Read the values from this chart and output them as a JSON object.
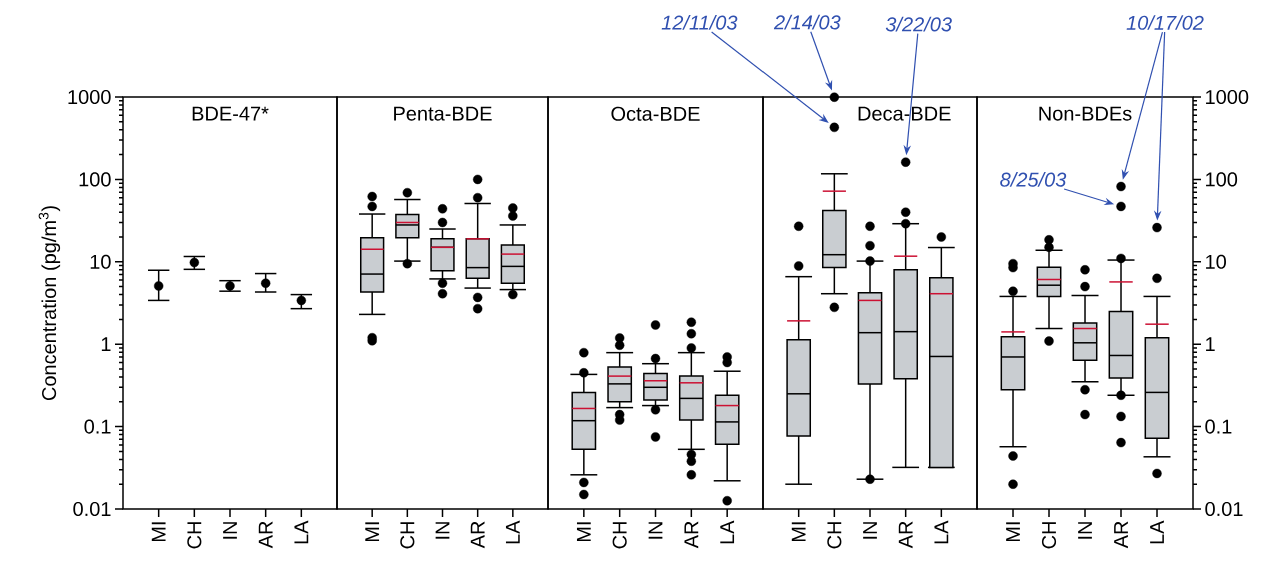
{
  "chart_data": [
    {
      "type": "scatter",
      "title": "BDE-47*",
      "ylabel": "Concentration (pg/m$^{3}$)",
      "categories": [
        "MI",
        "CH",
        "IN",
        "AR",
        "LA"
      ],
      "log": true,
      "ylim": [
        0.01,
        1000
      ],
      "yticks": [
        0.01,
        0.1,
        1,
        10,
        100,
        1000
      ],
      "marker": "circle",
      "series": [
        {
          "color": "#000000",
          "values": [
            5.1,
            9.8,
            5.1,
            5.5,
            3.4
          ],
          "errors": [
            [
              3.4,
              7.9
            ],
            [
              8.1,
              11.6
            ],
            [
              4.4,
              5.9
            ],
            [
              4.3,
              7.2
            ],
            [
              2.7,
              4.0
            ]
          ]
        }
      ]
    },
    {
      "type": "box",
      "title": "Penta-BDE",
      "categories": [
        "MI",
        "CH",
        "IN",
        "AR",
        "LA"
      ],
      "log": true,
      "ylim": [
        0.01,
        1000
      ],
      "tick_labels": "x",
      "series": [
        {
          "color": "#c9cdd1",
          "boxes": [
            {
              "low": 2.3,
              "q1": 4.3,
              "median": 7.1,
              "q3": 19.6,
              "high": 38,
              "mean": 14.2,
              "outliers": [
                62,
                47,
                1.2,
                1.1
              ]
            },
            {
              "low": 10.2,
              "q1": 19.6,
              "median": 28,
              "q3": 37.6,
              "high": 57,
              "mean": 30,
              "outliers": [
                69,
                9.5
              ]
            },
            {
              "low": 6.2,
              "q1": 7.8,
              "median": 15,
              "q3": 19,
              "high": 25,
              "mean": 15,
              "outliers": [
                44,
                30,
                5.5,
                4.1
              ]
            },
            {
              "low": 4.8,
              "q1": 6.3,
              "median": 8.5,
              "q3": 19,
              "high": 51,
              "mean": 19,
              "outliers": [
                100,
                60,
                3.7,
                2.7
              ]
            },
            {
              "low": 4.6,
              "q1": 5.5,
              "median": 8.8,
              "q3": 16,
              "high": 28,
              "mean": 12.4,
              "outliers": [
                45,
                36,
                4.0
              ]
            }
          ]
        }
      ]
    },
    {
      "type": "box",
      "title": "Octa-BDE",
      "categories": [
        "MI",
        "CH",
        "IN",
        "AR",
        "LA"
      ],
      "log": true,
      "ylim": [
        0.01,
        1000
      ],
      "tick_labels": "x",
      "series": [
        {
          "color": "#c9cdd1",
          "boxes": [
            {
              "low": 0.026,
              "q1": 0.053,
              "median": 0.118,
              "q3": 0.26,
              "high": 0.43,
              "mean": 0.166,
              "outliers": [
                0.79,
                0.45,
                0.021,
                0.015
              ]
            },
            {
              "low": 0.17,
              "q1": 0.2,
              "median": 0.33,
              "q3": 0.53,
              "high": 0.79,
              "mean": 0.41,
              "outliers": [
                1.19,
                0.97,
                0.14,
                0.12
              ]
            },
            {
              "low": 0.18,
              "q1": 0.21,
              "median": 0.3,
              "q3": 0.44,
              "high": 0.58,
              "mean": 0.36,
              "outliers": [
                1.71,
                0.67,
                0.16,
                0.075
              ]
            },
            {
              "low": 0.053,
              "q1": 0.12,
              "median": 0.22,
              "q3": 0.41,
              "high": 0.79,
              "mean": 0.34,
              "outliers": [
                1.85,
                1.34,
                0.9,
                0.046,
                0.038,
                0.026
              ]
            },
            {
              "low": 0.022,
              "q1": 0.061,
              "median": 0.114,
              "q3": 0.24,
              "high": 0.47,
              "mean": 0.18,
              "outliers": [
                0.7,
                0.6,
                0.0126
              ]
            }
          ]
        }
      ]
    },
    {
      "type": "box",
      "title": "Deca-BDE",
      "categories": [
        "MI",
        "CH",
        "IN",
        "AR",
        "LA"
      ],
      "log": true,
      "ylim": [
        0.01,
        1000
      ],
      "tick_labels": "x",
      "series": [
        {
          "color": "#c9cdd1",
          "boxes": [
            {
              "low": 0.02,
              "q1": 0.077,
              "median": 0.25,
              "q3": 1.13,
              "high": 6.6,
              "mean": 1.92,
              "outliers": [
                27,
                8.9
              ]
            },
            {
              "low": 4.1,
              "q1": 8.5,
              "median": 12.2,
              "q3": 42,
              "high": 117,
              "mean": 72,
              "outliers": [
                995,
                428,
                2.8
              ]
            },
            {
              "low": 0.023,
              "q1": 0.33,
              "median": 1.38,
              "q3": 4.2,
              "high": 10.2,
              "mean": 3.4,
              "outliers": [
                27,
                15.7,
                10.2,
                0.023
              ]
            },
            {
              "low": 0.032,
              "q1": 0.38,
              "median": 1.42,
              "q3": 8.0,
              "high": 29,
              "mean": 11.7,
              "outliers": [
                162,
                40,
                29
              ]
            },
            {
              "low": 0.032,
              "q1": 0.032,
              "median": 0.71,
              "q3": 6.4,
              "high": 14.9,
              "mean": 4.1,
              "outliers": [
                20
              ]
            }
          ]
        }
      ],
      "annotations": [
        "12/11/03",
        "2/14/03",
        "3/22/03"
      ]
    },
    {
      "type": "box",
      "title": "Non-BDEs",
      "categories": [
        "MI",
        "CH",
        "IN",
        "AR",
        "LA"
      ],
      "log": true,
      "ylim": [
        0.01,
        1000
      ],
      "yticks": [
        0.01,
        0.1,
        1,
        10,
        100,
        1000
      ],
      "series": [
        {
          "color": "#c9cdd1",
          "boxes": [
            {
              "low": 0.057,
              "q1": 0.28,
              "median": 0.7,
              "q3": 1.23,
              "high": 3.8,
              "mean": 1.41,
              "outliers": [
                9.5,
                8.5,
                4.4,
                0.044,
                0.02
              ]
            },
            {
              "low": 1.55,
              "q1": 3.8,
              "median": 5.2,
              "q3": 8.6,
              "high": 13.8,
              "mean": 6.1,
              "outliers": [
                18.5,
                15,
                1.09
              ]
            },
            {
              "low": 0.35,
              "q1": 0.64,
              "median": 1.04,
              "q3": 1.81,
              "high": 3.9,
              "mean": 1.55,
              "outliers": [
                8.0,
                5.0,
                0.28,
                0.14
              ]
            },
            {
              "low": 0.24,
              "q1": 0.39,
              "median": 0.73,
              "q3": 2.49,
              "high": 10.5,
              "mean": 5.7,
              "outliers": [
                82,
                47,
                11,
                0.24,
                0.133,
                0.064
              ]
            },
            {
              "low": 0.043,
              "q1": 0.072,
              "median": 0.26,
              "q3": 1.2,
              "high": 3.8,
              "mean": 1.75,
              "outliers": [
                26,
                6.3,
                0.027
              ]
            }
          ]
        }
      ],
      "annotations": [
        "8/25/03",
        "10/17/02"
      ]
    }
  ]
}
